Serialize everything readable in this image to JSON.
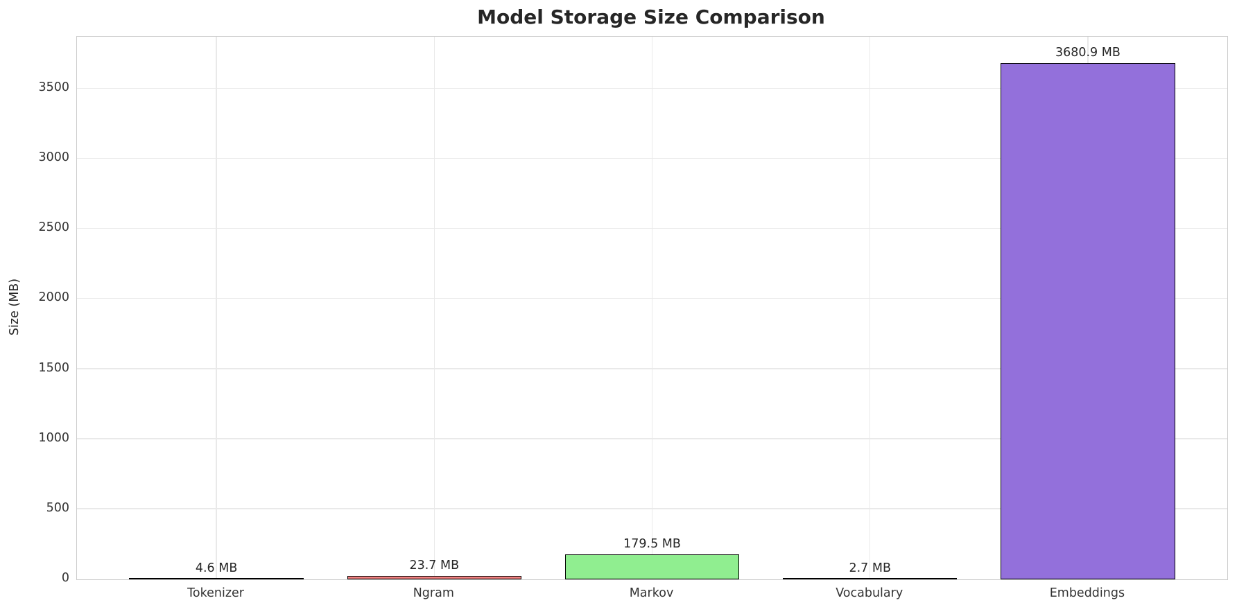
{
  "chart_data": {
    "type": "bar",
    "title": "Model Storage Size Comparison",
    "xlabel": "",
    "ylabel": "Size (MB)",
    "categories": [
      "Tokenizer",
      "Ngram",
      "Markov",
      "Vocabulary",
      "Embeddings"
    ],
    "values": [
      4.6,
      23.7,
      179.5,
      2.7,
      3680.9
    ],
    "value_labels": [
      "4.6 MB",
      "23.7 MB",
      "179.5 MB",
      "2.7 MB",
      "3680.9 MB"
    ],
    "bar_colors": [
      "#87CEEB",
      "#F08080",
      "#90EE90",
      "#FFD700",
      "#9370DB"
    ],
    "bar_edge_color": "#000000",
    "y_ticks": [
      0,
      500,
      1000,
      1500,
      2000,
      2500,
      3000,
      3500
    ],
    "ylim": [
      0,
      3871
    ],
    "grid": true,
    "legend_position": "none",
    "plot_background": "#ffffff",
    "grid_color": "#e9e9e9",
    "spine_color": "#cccccc",
    "text_color": "#262626"
  }
}
